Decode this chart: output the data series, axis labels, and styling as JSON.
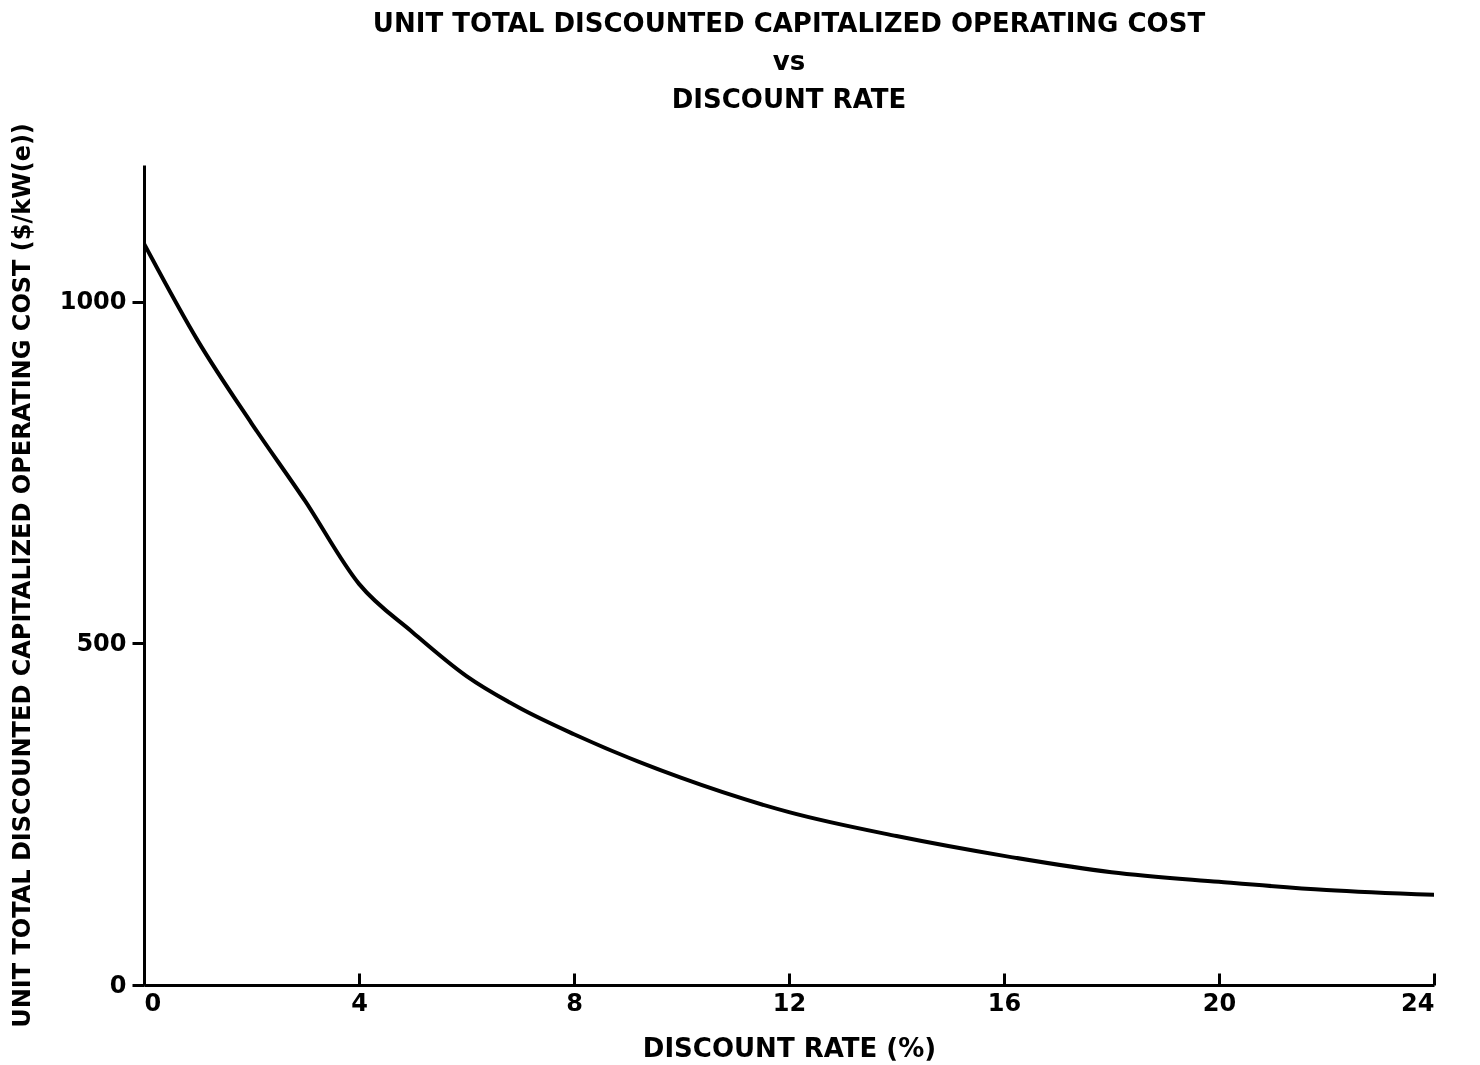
{
  "chart_data": {
    "type": "line",
    "title": "UNIT TOTAL DISCOUNTED CAPITALIZED OPERATING COST\nvs\nDISCOUNT RATE",
    "xlabel": "DISCOUNT RATE (%)",
    "ylabel": "UNIT TOTAL DISCOUNTED CAPITALIZED OPERATING COST ($/kW(e))",
    "x": [
      0,
      1,
      2,
      3,
      4,
      5,
      6,
      7,
      8,
      10,
      12,
      14,
      16,
      18,
      20,
      22,
      24
    ],
    "series": [
      {
        "color": "#000000",
        "values": [
          1085,
          943,
          822,
          708,
          587,
          516,
          452,
          405,
          367,
          303,
          253,
          218,
          189,
          165,
          151,
          139,
          132
        ]
      }
    ],
    "xlim": [
      0,
      24
    ],
    "xticks": [
      0,
      4,
      8,
      12,
      16,
      20,
      24
    ],
    "ylim": [
      0,
      1200
    ],
    "yticks": [
      0,
      500,
      1000
    ],
    "grid": false,
    "marker": "none",
    "line_style": "solid"
  }
}
